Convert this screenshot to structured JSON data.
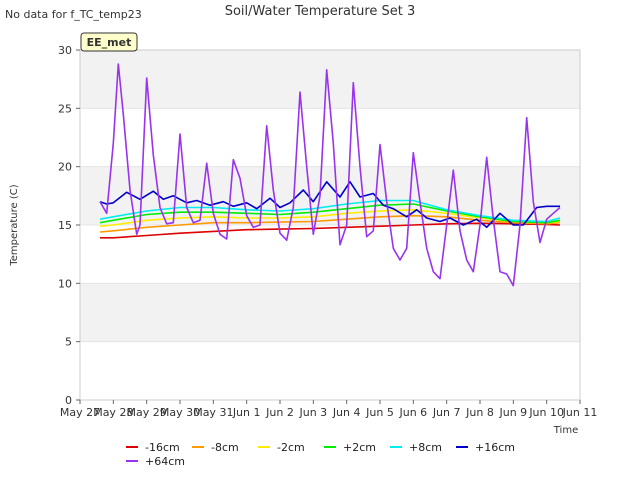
{
  "chart_data": {
    "type": "line",
    "title": "Soil/Water Temperature Set 3",
    "corner_note": "No data for f_TC_temp23",
    "badge": "EE_met",
    "xlabel": "Time",
    "ylabel": "Temperature (C)",
    "ylim": [
      0,
      30
    ],
    "yticks": [
      0,
      5,
      10,
      15,
      20,
      25,
      30
    ],
    "x_range_days": [
      0,
      15
    ],
    "x_ticks": [
      "May 27",
      "May 28",
      "May 29",
      "May 30",
      "May 31",
      "Jun 1",
      "Jun 2",
      "Jun 3",
      "Jun 4",
      "Jun 5",
      "Jun 6",
      "Jun 7",
      "Jun 8",
      "Jun 9",
      "Jun 10",
      "Jun 11"
    ],
    "grid": "horizontal bands",
    "legend_position": "bottom",
    "series": [
      {
        "name": "-16cm",
        "color": "#dd0000",
        "x": [
          0.6,
          1,
          2,
          3,
          4,
          5,
          6,
          7,
          8,
          9,
          10,
          11,
          12,
          13,
          14,
          14.4
        ],
        "y": [
          13.9,
          13.9,
          14.1,
          14.3,
          14.45,
          14.6,
          14.65,
          14.7,
          14.8,
          14.9,
          15.0,
          15.1,
          15.15,
          15.1,
          15.05,
          15.0
        ]
      },
      {
        "name": "-8cm",
        "color": "#ff9900",
        "x": [
          0.6,
          1,
          2,
          3,
          4,
          5,
          6,
          7,
          8,
          9,
          10,
          11,
          12,
          13,
          14,
          14.4
        ],
        "y": [
          14.4,
          14.5,
          14.8,
          15.0,
          15.2,
          15.2,
          15.25,
          15.3,
          15.5,
          15.7,
          15.8,
          15.7,
          15.4,
          15.2,
          15.1,
          15.2
        ]
      },
      {
        "name": "-2cm",
        "color": "#ffee00",
        "x": [
          0.6,
          1,
          2,
          3,
          4,
          5,
          6,
          7,
          8,
          9,
          10,
          11,
          12,
          13,
          14,
          14.4
        ],
        "y": [
          14.9,
          15.0,
          15.4,
          15.6,
          15.7,
          15.6,
          15.6,
          15.7,
          16.0,
          16.2,
          16.3,
          16.0,
          15.6,
          15.3,
          15.2,
          15.3
        ]
      },
      {
        "name": "+2cm",
        "color": "#00ee00",
        "x": [
          0.6,
          1,
          2,
          3,
          4,
          5,
          6,
          7,
          8,
          9,
          10,
          11,
          12,
          13,
          14,
          14.4
        ],
        "y": [
          15.2,
          15.4,
          15.9,
          16.1,
          16.1,
          16.0,
          15.9,
          16.1,
          16.4,
          16.7,
          16.8,
          16.2,
          15.7,
          15.3,
          15.2,
          15.4
        ]
      },
      {
        "name": "+8cm",
        "color": "#00eeee",
        "x": [
          0.6,
          1,
          2,
          3,
          4,
          5,
          6,
          7,
          8,
          9,
          10,
          11,
          12,
          13,
          14,
          14.4
        ],
        "y": [
          15.5,
          15.7,
          16.2,
          16.5,
          16.5,
          16.3,
          16.2,
          16.4,
          16.8,
          17.1,
          17.1,
          16.3,
          15.8,
          15.4,
          15.3,
          15.6
        ]
      },
      {
        "name": "+16cm",
        "color": "#0000cc",
        "x": [
          0.6,
          0.8,
          1.0,
          1.4,
          1.8,
          2.2,
          2.5,
          2.8,
          3.2,
          3.5,
          3.9,
          4.3,
          4.6,
          5.0,
          5.3,
          5.7,
          6.0,
          6.3,
          6.7,
          7.0,
          7.4,
          7.8,
          8.1,
          8.4,
          8.8,
          9.1,
          9.4,
          9.8,
          10.1,
          10.4,
          10.8,
          11.1,
          11.5,
          11.9,
          12.2,
          12.6,
          13.0,
          13.3,
          13.7,
          14.0,
          14.4
        ],
        "y": [
          17.0,
          16.8,
          16.9,
          17.8,
          17.2,
          17.9,
          17.2,
          17.5,
          16.9,
          17.1,
          16.7,
          17.0,
          16.6,
          16.9,
          16.4,
          17.3,
          16.5,
          16.9,
          18.0,
          17.0,
          18.7,
          17.4,
          18.7,
          17.4,
          17.7,
          16.7,
          16.4,
          15.7,
          16.3,
          15.6,
          15.3,
          15.6,
          15.0,
          15.5,
          14.8,
          16.0,
          15.0,
          15.0,
          16.5,
          16.6,
          16.6
        ]
      },
      {
        "name": "+64cm",
        "color": "#9933ee",
        "x": [
          0.6,
          0.8,
          1.0,
          1.15,
          1.3,
          1.5,
          1.7,
          1.8,
          2.0,
          2.2,
          2.4,
          2.6,
          2.8,
          3.0,
          3.2,
          3.4,
          3.6,
          3.8,
          4.0,
          4.2,
          4.4,
          4.6,
          4.8,
          5.0,
          5.2,
          5.4,
          5.6,
          5.8,
          6.0,
          6.2,
          6.4,
          6.6,
          6.8,
          7.0,
          7.2,
          7.4,
          7.6,
          7.8,
          8.0,
          8.2,
          8.4,
          8.6,
          8.8,
          9.0,
          9.2,
          9.4,
          9.6,
          9.8,
          10.0,
          10.2,
          10.4,
          10.6,
          10.8,
          11.0,
          11.2,
          11.4,
          11.6,
          11.8,
          12.0,
          12.2,
          12.4,
          12.6,
          12.8,
          13.0,
          13.2,
          13.4,
          13.6,
          13.8,
          14.0,
          14.2,
          14.4
        ],
        "y": [
          17.0,
          16.0,
          22.0,
          28.8,
          24.5,
          18.0,
          14.2,
          15.0,
          27.6,
          21.0,
          16.5,
          15.1,
          15.2,
          22.8,
          16.5,
          15.2,
          15.4,
          20.3,
          16.0,
          14.2,
          13.8,
          20.6,
          19.0,
          15.8,
          14.8,
          15.0,
          23.5,
          18.0,
          14.3,
          13.7,
          16.5,
          26.4,
          20.0,
          14.2,
          17.5,
          28.3,
          22.0,
          13.3,
          15.0,
          27.2,
          20.0,
          14.0,
          14.5,
          21.9,
          17.0,
          13.0,
          12.0,
          13.0,
          21.2,
          17.0,
          13.0,
          11.0,
          10.4,
          15.0,
          19.7,
          14.5,
          12.0,
          11.0,
          15.0,
          20.8,
          15.5,
          11.0,
          10.8,
          9.8,
          15.0,
          24.2,
          17.0,
          13.5,
          15.5,
          16.0,
          16.5
        ]
      }
    ]
  }
}
